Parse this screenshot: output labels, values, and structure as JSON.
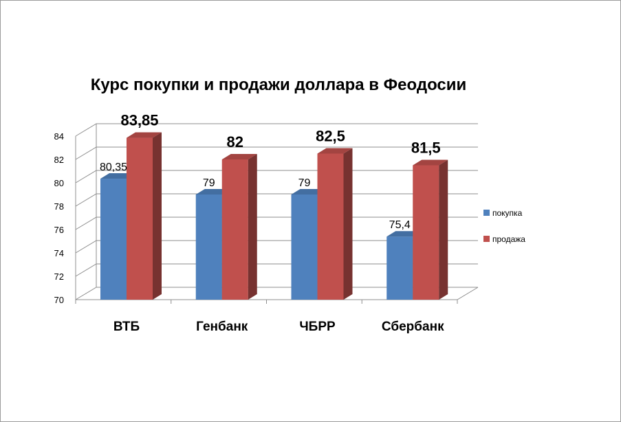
{
  "chart_data": {
    "type": "bar",
    "title": "Курс покупки и продажи доллара в Феодосии",
    "categories": [
      "ВТБ",
      "Генбанк",
      "ЧБРР",
      "Сбербанк"
    ],
    "series": [
      {
        "name": "покупка",
        "color": "#4f81bd",
        "values": [
          80.35,
          79,
          79,
          75.4
        ],
        "labels": [
          "80,35",
          "79",
          "79",
          "75,4"
        ]
      },
      {
        "name": "продажа",
        "color": "#c0504d",
        "values": [
          83.85,
          82,
          82.5,
          81.5
        ],
        "labels": [
          "83,85",
          "82",
          "82,5",
          "81,5"
        ]
      }
    ],
    "ylim": [
      70,
      84
    ],
    "yticks": [
      "70",
      "72",
      "74",
      "76",
      "78",
      "80",
      "82",
      "84"
    ],
    "grid": true,
    "legend": "right",
    "xlabel": "",
    "ylabel": ""
  }
}
